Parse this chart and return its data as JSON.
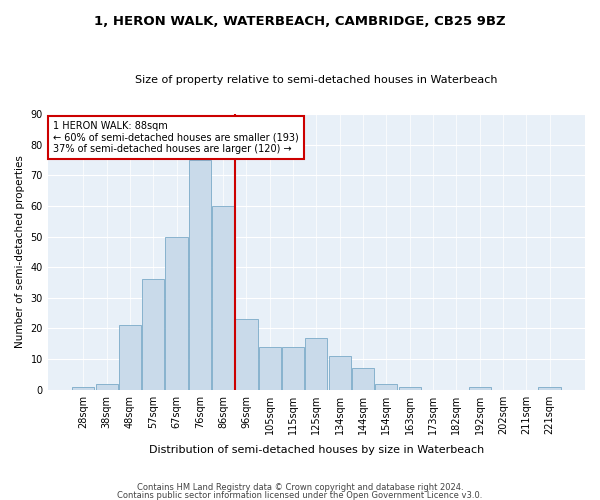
{
  "title1": "1, HERON WALK, WATERBEACH, CAMBRIDGE, CB25 9BZ",
  "title2": "Size of property relative to semi-detached houses in Waterbeach",
  "xlabel": "Distribution of semi-detached houses by size in Waterbeach",
  "ylabel": "Number of semi-detached properties",
  "categories": [
    "28sqm",
    "38sqm",
    "48sqm",
    "57sqm",
    "67sqm",
    "76sqm",
    "86sqm",
    "96sqm",
    "105sqm",
    "115sqm",
    "125sqm",
    "134sqm",
    "144sqm",
    "154sqm",
    "163sqm",
    "173sqm",
    "182sqm",
    "192sqm",
    "202sqm",
    "211sqm",
    "221sqm"
  ],
  "values": [
    1,
    2,
    21,
    36,
    50,
    75,
    60,
    23,
    14,
    14,
    17,
    11,
    7,
    2,
    1,
    0,
    0,
    1,
    0,
    0,
    1
  ],
  "bar_color": "#c9daea",
  "bar_edge_color": "#7aaac8",
  "vline_color": "#cc0000",
  "annotation_box_edge": "#cc0000",
  "ylim": [
    0,
    90
  ],
  "yticks": [
    0,
    10,
    20,
    30,
    40,
    50,
    60,
    70,
    80,
    90
  ],
  "footnote1": "Contains HM Land Registry data © Crown copyright and database right 2024.",
  "footnote2": "Contains public sector information licensed under the Open Government Licence v3.0.",
  "bg_color": "#e8f0f8",
  "bar_width": 0.95,
  "property_line_label": "1 HERON WALK: 88sqm",
  "annotation_line1": "← 60% of semi-detached houses are smaller (193)",
  "annotation_line2": "37% of semi-detached houses are larger (120) →"
}
